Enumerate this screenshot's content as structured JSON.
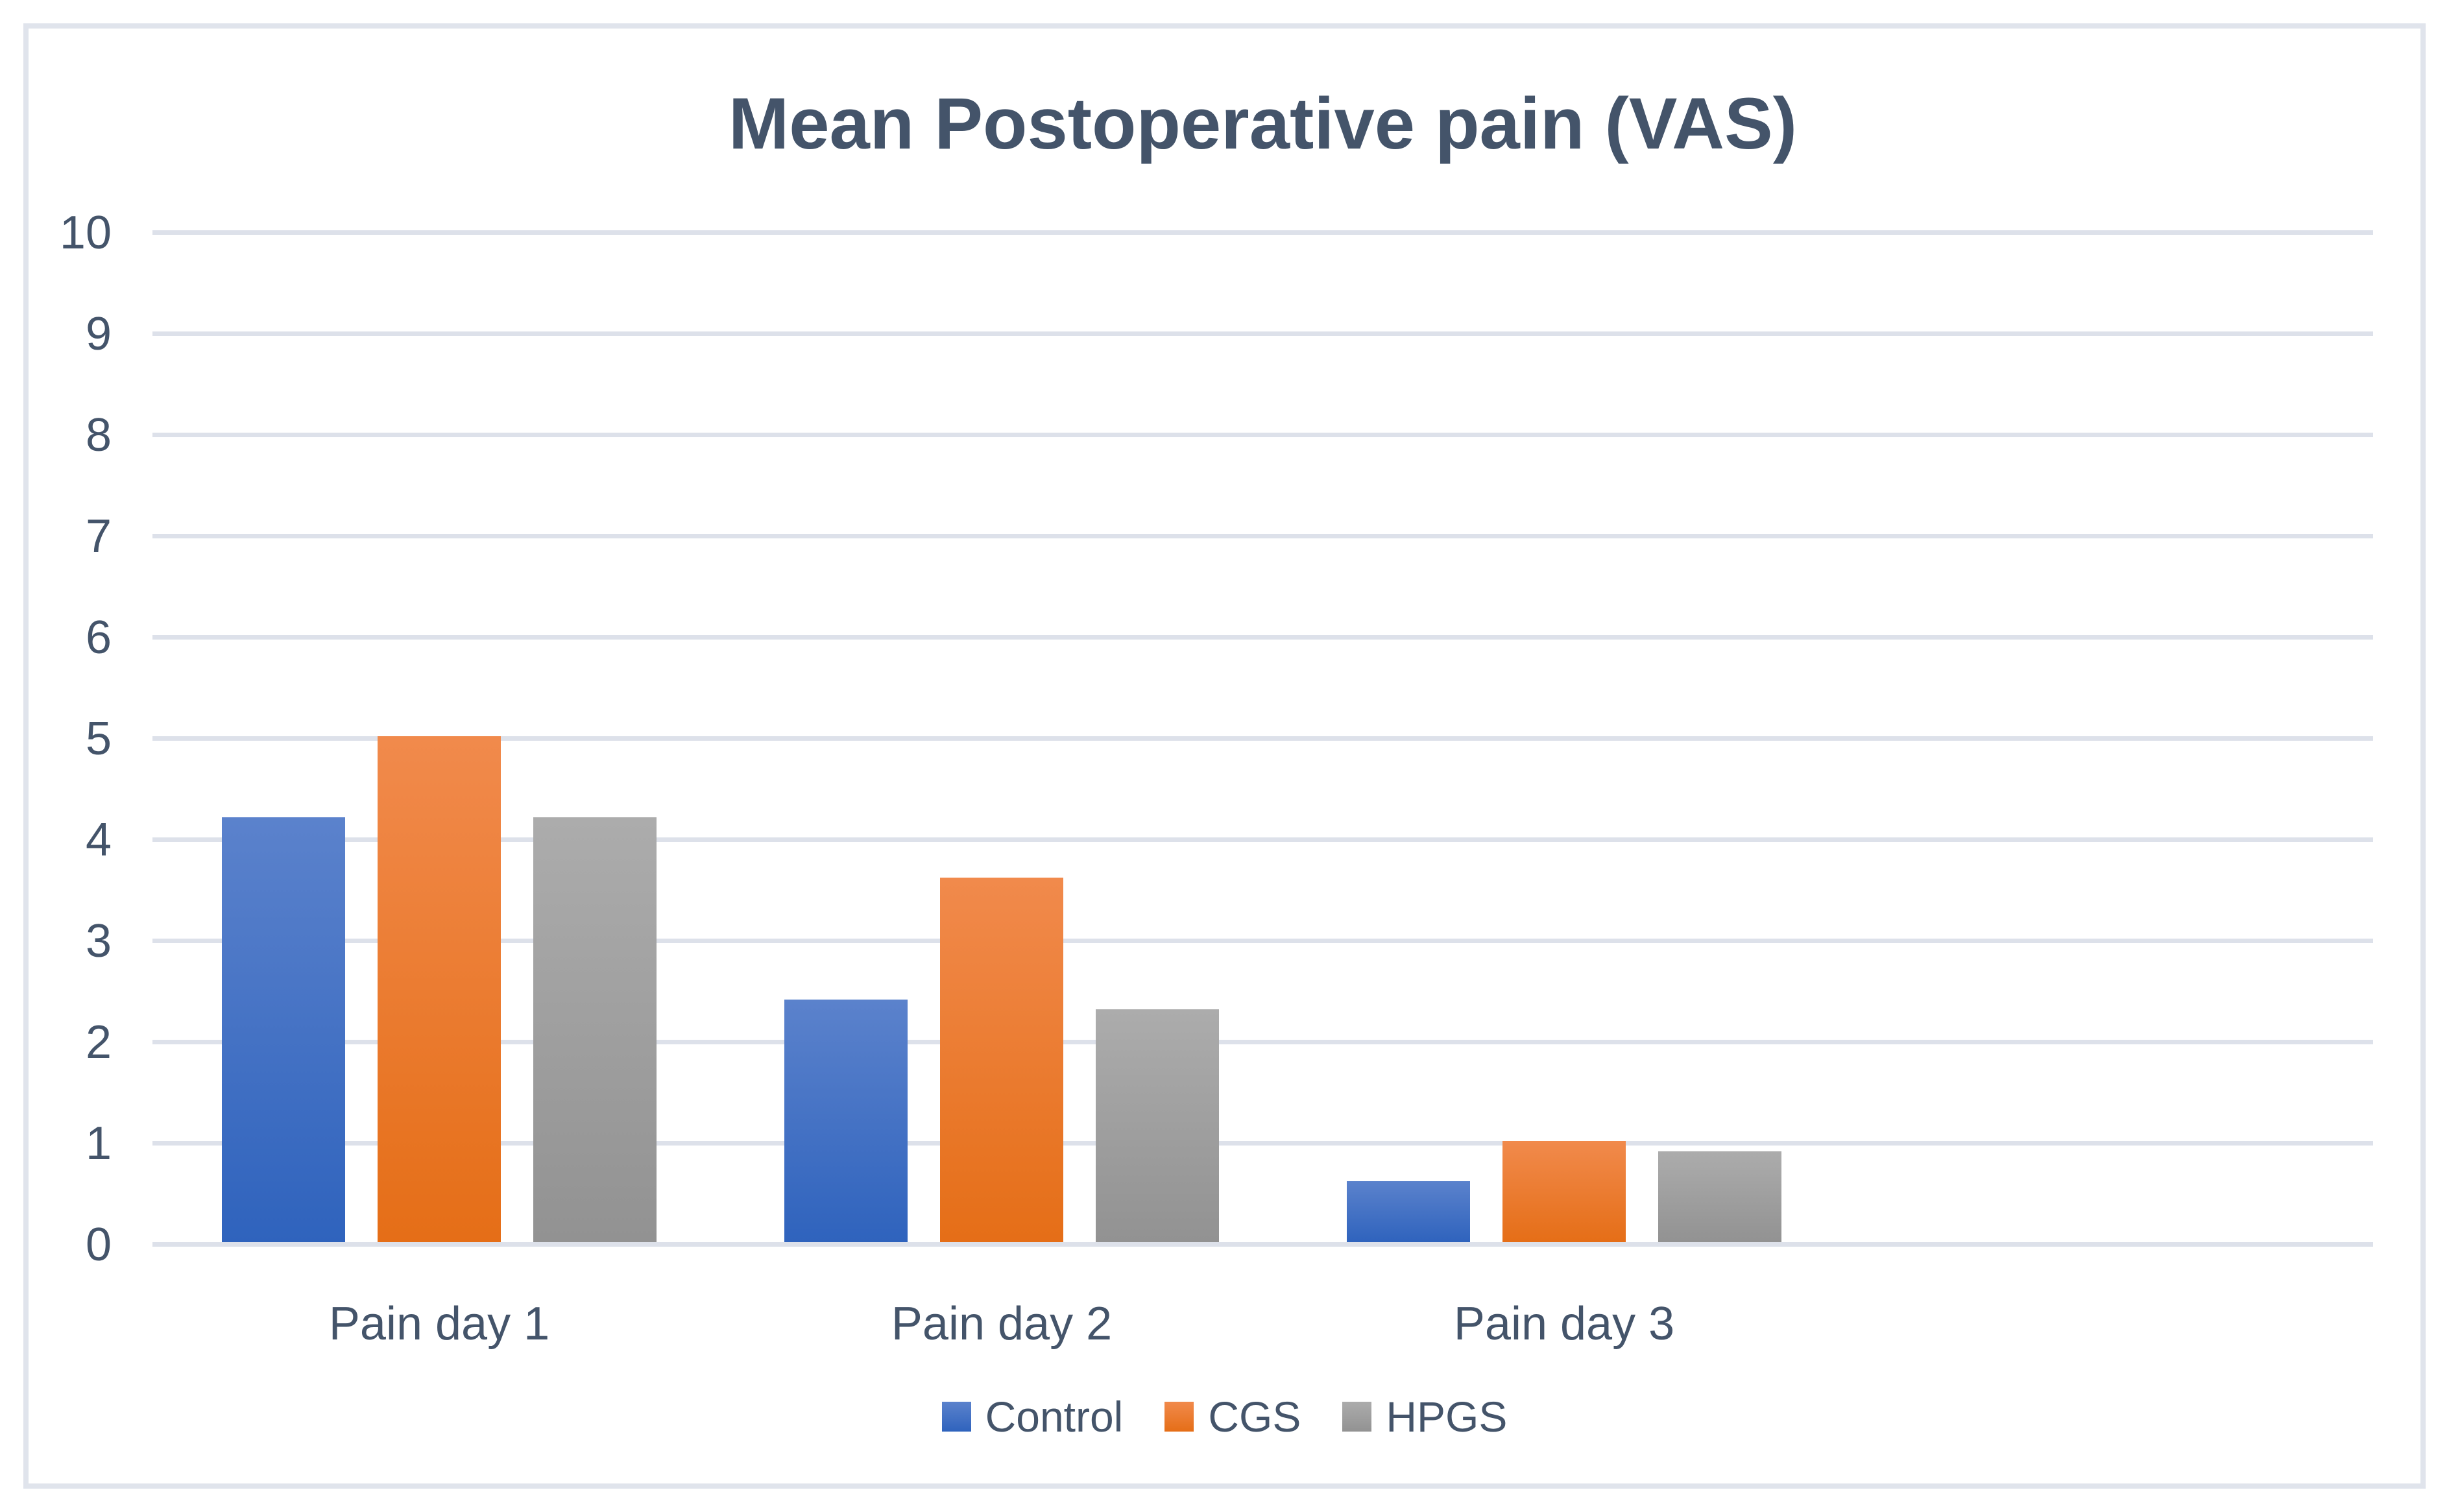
{
  "chart_data": {
    "type": "bar",
    "title": "Mean Postoperative pain (VAS)",
    "categories": [
      "Pain day 1",
      "Pain day 2",
      "Pain day 3"
    ],
    "series": [
      {
        "name": "Control",
        "values": [
          4.2,
          2.4,
          0.6
        ],
        "color_top": "#5B82CC",
        "color_bottom": "#2F63BD"
      },
      {
        "name": "CGS",
        "values": [
          5.0,
          3.6,
          1.0
        ],
        "color_top": "#F18A4C",
        "color_bottom": "#E56E17"
      },
      {
        "name": "HPGS",
        "values": [
          4.2,
          2.3,
          0.9
        ],
        "color_top": "#ACACAC",
        "color_bottom": "#929292"
      }
    ],
    "xlabel": "",
    "ylabel": "",
    "ylim": [
      0,
      10
    ],
    "yticks": [
      0,
      1,
      2,
      3,
      4,
      5,
      6,
      7,
      8,
      9,
      10
    ],
    "grid": true,
    "legend_position": "bottom"
  },
  "styles": {
    "text_color": "#44546A",
    "gridline_color": "#DDE1EA",
    "border_color": "#E0E4EC",
    "background_color": "#FFFFFF"
  }
}
